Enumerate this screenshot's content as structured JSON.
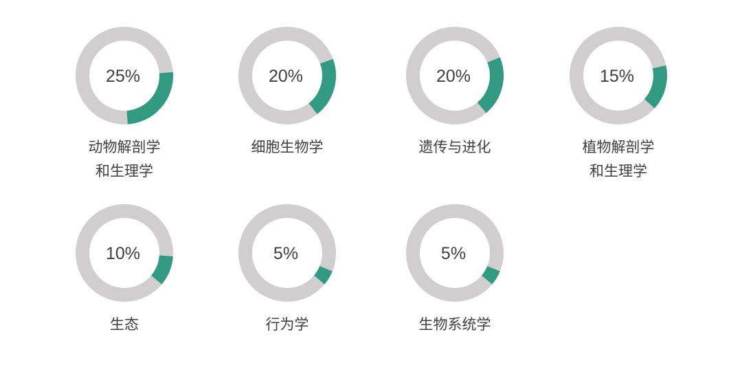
{
  "chart_data": {
    "type": "pie",
    "variant": "donut-grid",
    "unit": "%",
    "colors": {
      "value": "#329a80",
      "track": "#d0cecf",
      "text": "#3f3f3f"
    },
    "items": [
      {
        "label": "动物解剖学\n和生理学",
        "value": 25,
        "value_label": "25%"
      },
      {
        "label": "细胞生物学",
        "value": 20,
        "value_label": "20%"
      },
      {
        "label": "遗传与进化",
        "value": 20,
        "value_label": "20%"
      },
      {
        "label": "植物解剖学\n和生理学",
        "value": 15,
        "value_label": "15%"
      },
      {
        "label": "生态",
        "value": 10,
        "value_label": "10%"
      },
      {
        "label": "行为学",
        "value": 5,
        "value_label": "5%"
      },
      {
        "label": "生物系统学",
        "value": 5,
        "value_label": "5%"
      }
    ]
  }
}
